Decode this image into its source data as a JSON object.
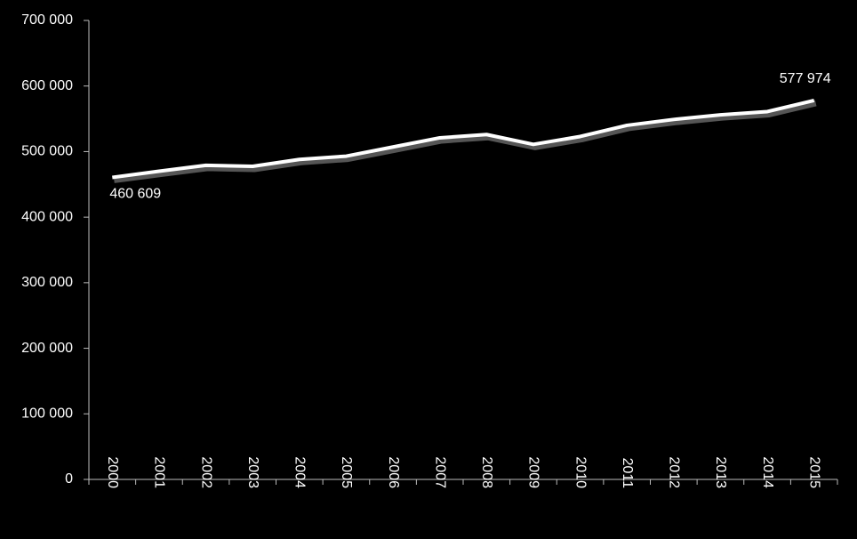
{
  "chart_data": {
    "type": "line",
    "categories": [
      "2000",
      "2001",
      "2002",
      "2003",
      "2004",
      "2005",
      "2006",
      "2007",
      "2008",
      "2009",
      "2010",
      "2011",
      "2012",
      "2013",
      "2014",
      "2015"
    ],
    "values": [
      460609,
      470000,
      479000,
      477500,
      488000,
      493000,
      507000,
      521000,
      526000,
      511000,
      523000,
      540000,
      549000,
      556000,
      561000,
      577974
    ],
    "value_labels": [
      "460 609",
      null,
      null,
      null,
      null,
      null,
      null,
      null,
      null,
      null,
      null,
      null,
      null,
      null,
      null,
      "577 974"
    ],
    "color": "#ffffff",
    "ylim": [
      0,
      700000
    ],
    "yticks": [
      0,
      {
        "value": 100000,
        "label": "100 000"
      },
      {
        "value": 200000,
        "label": "200 000"
      },
      {
        "value": 300000,
        "label": "300 000"
      },
      {
        "value": 400000,
        "label": "400 000"
      },
      {
        "value": 500000,
        "label": "500 000"
      },
      {
        "value": 600000,
        "label": "600 000"
      },
      {
        "value": 700000,
        "label": "700 000"
      }
    ]
  }
}
